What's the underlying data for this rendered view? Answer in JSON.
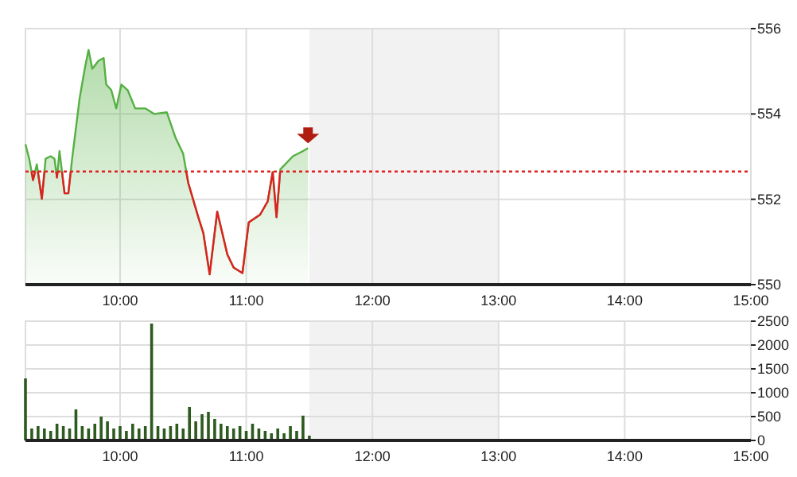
{
  "chart_data": [
    {
      "type": "area",
      "x": [
        9.25,
        9.28,
        9.31,
        9.34,
        9.38,
        9.41,
        9.45,
        9.48,
        9.5,
        9.52,
        9.56,
        9.59,
        9.62,
        9.68,
        9.72,
        9.75,
        9.78,
        9.83,
        9.87,
        9.89,
        9.93,
        9.97,
        10.01,
        10.06,
        10.12,
        10.2,
        10.27,
        10.37,
        10.44,
        10.5,
        10.54,
        10.62,
        10.66,
        10.71,
        10.77,
        10.81,
        10.85,
        10.9,
        10.97,
        11.02,
        11.11,
        11.17,
        11.21,
        11.24,
        11.27,
        11.37,
        11.45,
        11.49
      ],
      "series": [
        {
          "color": "#55b043",
          "values": [
            553.29,
            552.95,
            552.45,
            552.82,
            552.01,
            552.95,
            553.01,
            552.95,
            552.51,
            553.13,
            552.14,
            552.14,
            552.95,
            554.38,
            555.06,
            555.5,
            555.06,
            555.25,
            555.31,
            554.69,
            554.56,
            554.13,
            554.69,
            554.56,
            554.13,
            554.13,
            554.0,
            554.04,
            553.44,
            553.07,
            552.39,
            551.58,
            551.21,
            550.24,
            551.71,
            551.21,
            550.71,
            550.4,
            550.27,
            551.46,
            551.64,
            551.95,
            552.64,
            551.58,
            552.7,
            553.01,
            553.13,
            553.2
          ]
        }
      ],
      "xlim": [
        9.25,
        15
      ],
      "xticks": [
        {
          "value": 10,
          "label": "10:00"
        },
        {
          "value": 11,
          "label": "11:00"
        },
        {
          "value": 12,
          "label": "12:00"
        },
        {
          "value": 13,
          "label": "13:00"
        },
        {
          "value": 14,
          "label": "14:00"
        },
        {
          "value": 15,
          "label": "15:00"
        }
      ],
      "ylim": [
        550,
        556
      ],
      "yticks": [
        550,
        552,
        554,
        556
      ],
      "ref_lines": [
        {
          "axis": "y",
          "value": 552.65,
          "color": "#e02020",
          "line_style": "dotted"
        }
      ],
      "bands": [
        {
          "axis": "x",
          "from": 11.5,
          "to": 13,
          "color": "#f2f2f2"
        }
      ],
      "grid": true
    },
    {
      "type": "bar",
      "x": [
        9.25,
        9.3,
        9.35,
        9.4,
        9.45,
        9.5,
        9.55,
        9.6,
        9.65,
        9.7,
        9.75,
        9.8,
        9.85,
        9.9,
        9.95,
        10.0,
        10.05,
        10.1,
        10.15,
        10.2,
        10.25,
        10.3,
        10.35,
        10.4,
        10.45,
        10.5,
        10.55,
        10.6,
        10.65,
        10.7,
        10.75,
        10.8,
        10.85,
        10.9,
        10.95,
        11.0,
        11.05,
        11.1,
        11.15,
        11.2,
        11.25,
        11.3,
        11.35,
        11.4,
        11.45,
        11.5
      ],
      "values": [
        1300,
        250,
        300,
        250,
        200,
        350,
        300,
        250,
        650,
        300,
        250,
        350,
        500,
        400,
        250,
        300,
        200,
        350,
        250,
        300,
        2450,
        300,
        250,
        300,
        350,
        250,
        700,
        400,
        550,
        600,
        450,
        350,
        300,
        250,
        300,
        200,
        350,
        250,
        200,
        150,
        250,
        150,
        300,
        200,
        520,
        100
      ],
      "color": "#2d5a1e",
      "xlim": [
        9.25,
        15
      ],
      "xticks": [
        {
          "value": 10,
          "label": "10:00"
        },
        {
          "value": 11,
          "label": "11:00"
        },
        {
          "value": 12,
          "label": "12:00"
        },
        {
          "value": 13,
          "label": "13:00"
        },
        {
          "value": 14,
          "label": "14:00"
        },
        {
          "value": 15,
          "label": "15:00"
        }
      ],
      "ylim": [
        0,
        2500
      ],
      "yticks": [
        0,
        500,
        1000,
        1500,
        2000,
        2500
      ],
      "bands": [
        {
          "axis": "x",
          "from": 11.5,
          "to": 13,
          "color": "#f2f2f2"
        }
      ],
      "grid": true
    }
  ]
}
